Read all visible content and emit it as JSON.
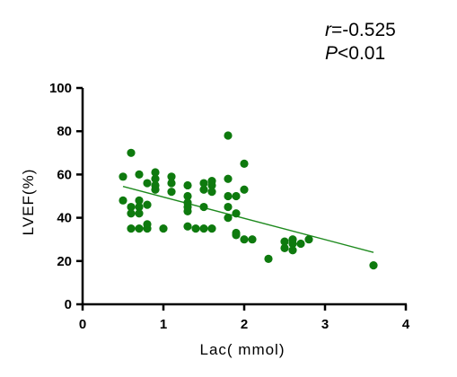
{
  "chart_data": {
    "type": "scatter",
    "title": "",
    "xlabel": "Lac( mmol)",
    "ylabel": "LVEF(%)",
    "xlim": [
      0,
      4
    ],
    "ylim": [
      0,
      100
    ],
    "x_ticks": [
      0,
      1,
      2,
      3,
      4
    ],
    "y_ticks": [
      0,
      20,
      40,
      60,
      80,
      100
    ],
    "x_tick_labels": [
      "0",
      "1",
      "2",
      "3",
      "4"
    ],
    "y_tick_labels": [
      "0",
      "20",
      "40",
      "60",
      "80",
      "100"
    ],
    "grid": false,
    "point_color": "#0e7a0e",
    "line_color": "#1e8a1e",
    "annotations": {
      "r_symbol": "r",
      "r_value": "=-0.525",
      "p_symbol": "P",
      "p_value": "<0.01"
    },
    "trend_line": {
      "x": [
        0.5,
        3.6
      ],
      "y": [
        54.5,
        24
      ]
    },
    "points": [
      {
        "x": 0.5,
        "y": 59
      },
      {
        "x": 0.5,
        "y": 48
      },
      {
        "x": 0.6,
        "y": 70
      },
      {
        "x": 0.6,
        "y": 45
      },
      {
        "x": 0.6,
        "y": 42
      },
      {
        "x": 0.6,
        "y": 35
      },
      {
        "x": 0.7,
        "y": 60
      },
      {
        "x": 0.7,
        "y": 48
      },
      {
        "x": 0.7,
        "y": 45
      },
      {
        "x": 0.7,
        "y": 42
      },
      {
        "x": 0.7,
        "y": 35
      },
      {
        "x": 0.8,
        "y": 56
      },
      {
        "x": 0.8,
        "y": 46
      },
      {
        "x": 0.8,
        "y": 37
      },
      {
        "x": 0.8,
        "y": 35
      },
      {
        "x": 0.9,
        "y": 61
      },
      {
        "x": 0.9,
        "y": 58
      },
      {
        "x": 0.9,
        "y": 55
      },
      {
        "x": 0.9,
        "y": 53
      },
      {
        "x": 1.0,
        "y": 35
      },
      {
        "x": 1.1,
        "y": 59
      },
      {
        "x": 1.1,
        "y": 56
      },
      {
        "x": 1.1,
        "y": 52
      },
      {
        "x": 1.3,
        "y": 55
      },
      {
        "x": 1.3,
        "y": 50
      },
      {
        "x": 1.3,
        "y": 47
      },
      {
        "x": 1.3,
        "y": 45
      },
      {
        "x": 1.3,
        "y": 43
      },
      {
        "x": 1.3,
        "y": 36
      },
      {
        "x": 1.4,
        "y": 35
      },
      {
        "x": 1.5,
        "y": 56
      },
      {
        "x": 1.5,
        "y": 53
      },
      {
        "x": 1.5,
        "y": 45
      },
      {
        "x": 1.5,
        "y": 35
      },
      {
        "x": 1.6,
        "y": 57
      },
      {
        "x": 1.6,
        "y": 55
      },
      {
        "x": 1.6,
        "y": 52
      },
      {
        "x": 1.6,
        "y": 35
      },
      {
        "x": 1.8,
        "y": 78
      },
      {
        "x": 1.8,
        "y": 58
      },
      {
        "x": 1.8,
        "y": 50
      },
      {
        "x": 1.8,
        "y": 45
      },
      {
        "x": 1.8,
        "y": 40
      },
      {
        "x": 1.9,
        "y": 50
      },
      {
        "x": 1.9,
        "y": 42
      },
      {
        "x": 1.9,
        "y": 33
      },
      {
        "x": 1.9,
        "y": 32
      },
      {
        "x": 2.0,
        "y": 65
      },
      {
        "x": 2.0,
        "y": 53
      },
      {
        "x": 2.0,
        "y": 30
      },
      {
        "x": 2.1,
        "y": 30
      },
      {
        "x": 2.3,
        "y": 21
      },
      {
        "x": 2.5,
        "y": 29
      },
      {
        "x": 2.5,
        "y": 26
      },
      {
        "x": 2.6,
        "y": 30
      },
      {
        "x": 2.6,
        "y": 28
      },
      {
        "x": 2.6,
        "y": 25
      },
      {
        "x": 2.7,
        "y": 28
      },
      {
        "x": 2.8,
        "y": 30
      },
      {
        "x": 3.6,
        "y": 18
      }
    ]
  }
}
